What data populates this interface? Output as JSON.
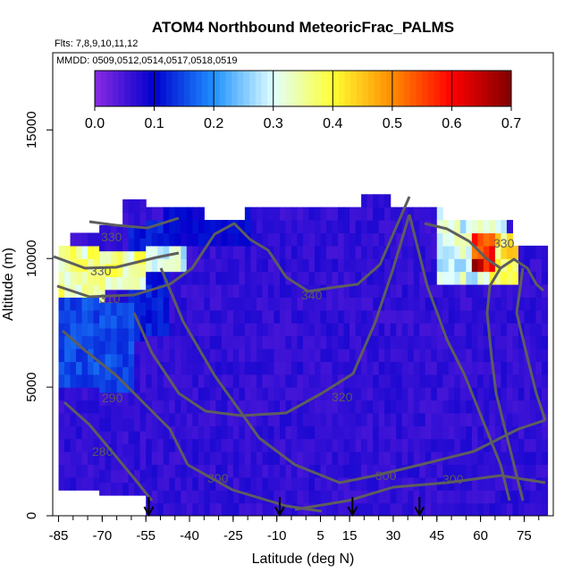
{
  "chart_data": {
    "type": "heatmap",
    "title": "ATOM4 Northbound MeteoricFrac_PALMS",
    "flights_label": "Flts: 7,8,9,10,11,12",
    "dates_label": "MMDD: 0509,0512,0514,0517,0518,0519",
    "xlabel": "Latitude (deg N)",
    "ylabel": "Altitude (m)",
    "xlim": [
      -87,
      85
    ],
    "ylim": [
      0,
      18000
    ],
    "x_ticks": [
      -85,
      -70,
      -55,
      -40,
      -25,
      -10,
      5,
      15,
      30,
      45,
      60,
      75
    ],
    "y_ticks": [
      0,
      5000,
      10000,
      15000
    ],
    "colorbar": {
      "range": [
        0,
        0.7
      ],
      "tick_labels": [
        "0.0",
        "0.1",
        "0.2",
        "0.3",
        "0.4",
        "0.5",
        "0.6",
        "0.7"
      ],
      "colors": [
        "#8a2be2",
        "#0000cd",
        "#1e90ff",
        "#e0ffff",
        "#ffff33",
        "#ff8c00",
        "#ff0000",
        "#800000"
      ]
    },
    "contour_labels": [
      "330",
      "330",
      "310",
      "340",
      "290",
      "320",
      "280",
      "300",
      "300",
      "300",
      "330"
    ],
    "arrow_latitudes": [
      -54,
      -9,
      16,
      39
    ],
    "regions": [
      {
        "lat": [
          -85,
          -70
        ],
        "alt": [
          8500,
          10500
        ],
        "value": 0.35
      },
      {
        "lat": [
          -70,
          -55
        ],
        "alt": [
          9000,
          10500
        ],
        "value": 0.35
      },
      {
        "lat": [
          -55,
          -42
        ],
        "alt": [
          9500,
          10500
        ],
        "value": 0.3
      },
      {
        "lat": [
          -84,
          -60
        ],
        "alt": [
          5000,
          8500
        ],
        "value": 0.15
      },
      {
        "lat": [
          -60,
          -48
        ],
        "alt": [
          7000,
          11500
        ],
        "value": 0.12
      },
      {
        "lat": [
          -48,
          -20
        ],
        "alt": [
          10500,
          12000
        ],
        "value": 0.1
      },
      {
        "lat": [
          45,
          68
        ],
        "alt": [
          9000,
          11800
        ],
        "value": 0.3
      },
      {
        "lat": [
          58,
          64
        ],
        "alt": [
          9600,
          10800
        ],
        "value": 0.6
      },
      {
        "lat": [
          64,
          72
        ],
        "alt": [
          9000,
          10800
        ],
        "value": 0.4
      }
    ],
    "background_value": 0.05
  }
}
